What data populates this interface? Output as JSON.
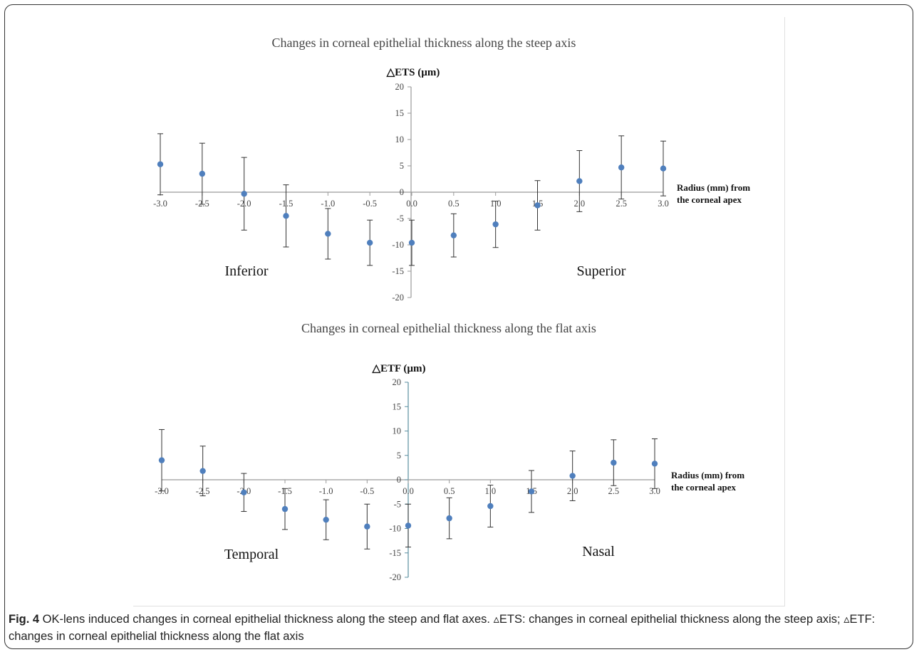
{
  "chart_data": [
    {
      "type": "scatter",
      "title": "Changes in corneal epithelial  thickness along the steep axis",
      "ylabel": "△ETS (µm)",
      "xlabel_lines": [
        "Radius (mm)  from",
        "the corneal apex"
      ],
      "left_region_label": "Inferior",
      "right_region_label": "Superior",
      "xlim": [
        -3.0,
        3.0
      ],
      "ylim": [
        -20,
        20
      ],
      "x_tick_labels": [
        "-3.0",
        "-2.5",
        "-2.0",
        "-1.5",
        "-1.0",
        "-0.5",
        "0.0",
        "0.5",
        "1.0",
        "1.5",
        "2.0",
        "2.5",
        "3.0"
      ],
      "y_tick_labels": [
        "20",
        "15",
        "10",
        "5",
        "0",
        "-5",
        "-10",
        "-15",
        "-20"
      ],
      "series": [
        {
          "x": [
            -3.0,
            -2.5,
            -2.0,
            -1.5,
            -1.0,
            -0.5,
            0.0,
            0.5,
            1.0,
            1.5,
            2.0,
            2.5,
            3.0
          ],
          "y": [
            5.3,
            3.5,
            -0.3,
            -4.5,
            -7.9,
            -9.6,
            -9.6,
            -8.2,
            -6.1,
            -2.5,
            2.1,
            4.7,
            4.5
          ],
          "error": [
            5.8,
            5.8,
            6.9,
            5.9,
            4.8,
            4.3,
            4.3,
            4.1,
            4.4,
            4.7,
            5.8,
            6.0,
            5.2
          ]
        }
      ],
      "grid": false
    },
    {
      "type": "scatter",
      "title": "Changes in corneal epithelial  thickness along the flat axis",
      "ylabel": "△ETF (µm)",
      "xlabel_lines": [
        "Radius (mm)  from",
        "the corneal apex"
      ],
      "left_region_label": "Temporal",
      "right_region_label": "Nasal",
      "xlim": [
        -3.0,
        3.0
      ],
      "ylim": [
        -20,
        20
      ],
      "x_tick_labels": [
        "-3.0",
        "-2.5",
        "-2.0",
        "-1.5",
        "-1.0",
        "-0.5",
        "0.0",
        "0.5",
        "1.0",
        "1.5",
        "2.0",
        "2.5",
        "3.0"
      ],
      "y_tick_labels": [
        "20",
        "15",
        "10",
        "5",
        "0",
        "-5",
        "-10",
        "-15",
        "-20"
      ],
      "series": [
        {
          "x": [
            -3.0,
            -2.5,
            -2.0,
            -1.5,
            -1.0,
            -0.5,
            0.0,
            0.5,
            1.0,
            1.5,
            2.0,
            2.5,
            3.0
          ],
          "y": [
            4.0,
            1.8,
            -2.6,
            -6.0,
            -8.2,
            -9.6,
            -9.4,
            -7.9,
            -5.4,
            -2.4,
            0.8,
            3.5,
            3.3
          ],
          "error": [
            6.3,
            5.1,
            3.9,
            4.2,
            4.1,
            4.6,
            4.4,
            4.2,
            4.3,
            4.3,
            5.1,
            4.7,
            5.1
          ]
        }
      ],
      "grid": false
    }
  ],
  "caption": {
    "label": "Fig. 4",
    "text": " OK-lens induced changes in corneal epithelial thickness along the steep and flat axes. ▵ETS: changes in corneal epithelial thickness along the steep axis; ▵ETF: changes in corneal epithelial thickness along the flat axis"
  },
  "colors": {
    "marker": "#4f7fbd",
    "axis": "#9a9a9a",
    "flat_y_axis": "#5b8fa0",
    "error_bar": "#333333"
  }
}
